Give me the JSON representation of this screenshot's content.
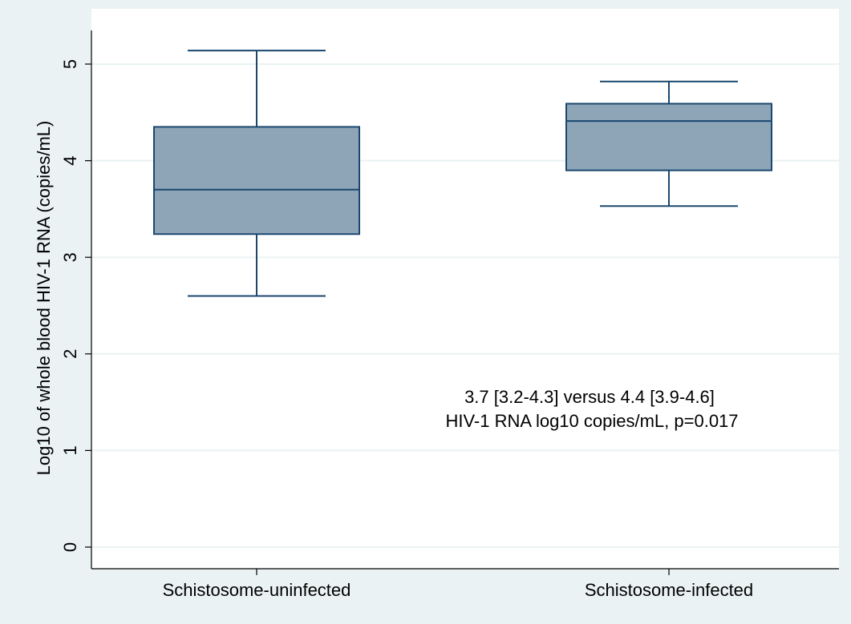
{
  "chart_data": {
    "type": "box",
    "title": "",
    "xlabel": "",
    "ylabel": "Log10 of whole blood HIV-1 RNA (copies/mL)",
    "ylim": [
      0,
      5.25
    ],
    "yticks": [
      0,
      1,
      2,
      3,
      4,
      5
    ],
    "grid": true,
    "categories": [
      "Schistosome-uninfected",
      "Schistosome-infected"
    ],
    "boxes": [
      {
        "category": "Schistosome-uninfected",
        "whisker_low": 2.6,
        "q1": 3.24,
        "median": 3.7,
        "q3": 4.35,
        "whisker_high": 5.14
      },
      {
        "category": "Schistosome-infected",
        "whisker_low": 3.53,
        "q1": 3.9,
        "median": 4.41,
        "q3": 4.59,
        "whisker_high": 4.82
      }
    ],
    "annotation": [
      "3.7 [3.2-4.3] versus 4.4 [3.9-4.6]",
      "HIV-1 RNA log10 copies/mL, p=0.017"
    ],
    "colors": {
      "plot_bg": "#ffffff",
      "outer_bg": "#eaf2f3",
      "box_fill": "#8ea5b8",
      "box_stroke": "#1a476f",
      "grid": "#eaf2f3"
    }
  }
}
